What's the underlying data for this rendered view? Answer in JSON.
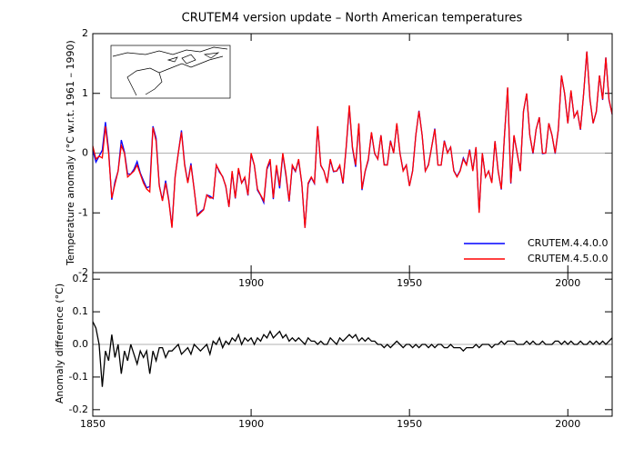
{
  "chart_data": [
    {
      "type": "line",
      "title": "CRUTEM4 version update – North American temperatures",
      "y_label": "Temperature anomaly (°C w.r.t. 1961 – 1990)",
      "x": [
        1850,
        1851,
        1852,
        1853,
        1854,
        1855,
        1856,
        1857,
        1858,
        1859,
        1860,
        1861,
        1862,
        1863,
        1864,
        1865,
        1866,
        1867,
        1868,
        1869,
        1870,
        1871,
        1872,
        1873,
        1874,
        1875,
        1876,
        1877,
        1878,
        1879,
        1880,
        1881,
        1882,
        1883,
        1884,
        1885,
        1886,
        1887,
        1888,
        1889,
        1890,
        1891,
        1892,
        1893,
        1894,
        1895,
        1896,
        1897,
        1898,
        1899,
        1900,
        1901,
        1902,
        1903,
        1904,
        1905,
        1906,
        1907,
        1908,
        1909,
        1910,
        1911,
        1912,
        1913,
        1914,
        1915,
        1916,
        1917,
        1918,
        1919,
        1920,
        1921,
        1922,
        1923,
        1924,
        1925,
        1926,
        1927,
        1928,
        1929,
        1930,
        1931,
        1932,
        1933,
        1934,
        1935,
        1936,
        1937,
        1938,
        1939,
        1940,
        1941,
        1942,
        1943,
        1944,
        1945,
        1946,
        1947,
        1948,
        1949,
        1950,
        1951,
        1952,
        1953,
        1954,
        1955,
        1956,
        1957,
        1958,
        1959,
        1960,
        1961,
        1962,
        1963,
        1964,
        1965,
        1966,
        1967,
        1968,
        1969,
        1970,
        1971,
        1972,
        1973,
        1974,
        1975,
        1976,
        1977,
        1978,
        1979,
        1980,
        1981,
        1982,
        1983,
        1984,
        1985,
        1986,
        1987,
        1988,
        1989,
        1990,
        1991,
        1992,
        1993,
        1994,
        1995,
        1996,
        1997,
        1998,
        1999,
        2000,
        2001,
        2002,
        2003,
        2004,
        2005,
        2006,
        2007,
        2008,
        2009,
        2010,
        2011,
        2012,
        2013,
        2014
      ],
      "series": [
        {
          "name": "CRUTEM.4.4.0.0",
          "color": "#0000ff",
          "values": [
            0.05,
            -0.15,
            -0.05,
            0.05,
            0.52,
            0.05,
            -0.78,
            -0.48,
            -0.3,
            0.22,
            0.02,
            -0.35,
            -0.35,
            -0.27,
            -0.14,
            -0.33,
            -0.46,
            -0.58,
            -0.56,
            0.45,
            0.25,
            -0.54,
            -0.79,
            -0.46,
            -0.78,
            -1.23,
            -0.39,
            0.0,
            0.38,
            -0.18,
            -0.49,
            -0.17,
            -0.6,
            -1.04,
            -0.98,
            -0.94,
            -0.7,
            -0.72,
            -0.76,
            -0.2,
            -0.32,
            -0.39,
            -0.56,
            -0.9,
            -0.32,
            -0.76,
            -0.28,
            -0.5,
            -0.42,
            -0.71,
            -0.02,
            -0.2,
            -0.62,
            -0.71,
            -0.83,
            -0.27,
            -0.14,
            -0.77,
            -0.23,
            -0.59,
            -0.02,
            -0.38,
            -0.81,
            -0.22,
            -0.31,
            -0.12,
            -0.51,
            -1.25,
            -0.52,
            -0.41,
            -0.51,
            0.45,
            -0.21,
            -0.3,
            -0.5,
            -0.12,
            -0.31,
            -0.3,
            -0.22,
            -0.51,
            0.08,
            0.77,
            0.08,
            -0.23,
            0.49,
            -0.62,
            -0.31,
            -0.12,
            0.34,
            -0.01,
            -0.1,
            0.3,
            -0.19,
            -0.2,
            0.21,
            0.0,
            0.49,
            0.0,
            -0.29,
            -0.2,
            -0.55,
            -0.29,
            0.3,
            0.71,
            0.3,
            -0.3,
            -0.19,
            0.1,
            0.41,
            -0.2,
            -0.2,
            0.21,
            0.01,
            0.1,
            -0.29,
            -0.39,
            -0.29,
            -0.08,
            -0.19,
            0.06,
            -0.29,
            0.1,
            -0.99,
            0.0,
            -0.4,
            -0.3,
            -0.49,
            0.2,
            -0.3,
            -0.61,
            0.3,
            1.09,
            -0.51,
            0.29,
            0.0,
            -0.3,
            0.7,
            0.99,
            0.3,
            -0.01,
            0.4,
            0.6,
            -0.01,
            0.0,
            0.5,
            0.3,
            -0.01,
            0.39,
            1.3,
            0.99,
            0.5,
            1.04,
            0.6,
            0.7,
            0.39,
            1.0,
            1.7,
            0.89,
            0.5,
            0.69,
            1.3,
            0.89,
            1.6,
            0.89,
            0.65
          ]
        },
        {
          "name": "CRUTEM.4.5.0.0",
          "color": "#ff0000",
          "values": [
            0.12,
            -0.1,
            -0.05,
            -0.08,
            0.45,
            0.0,
            -0.75,
            -0.52,
            -0.3,
            0.13,
            0.0,
            -0.4,
            -0.35,
            -0.3,
            -0.2,
            -0.35,
            -0.5,
            -0.6,
            -0.65,
            0.43,
            0.2,
            -0.55,
            -0.8,
            -0.5,
            -0.8,
            -1.25,
            -0.4,
            0.0,
            0.35,
            -0.2,
            -0.5,
            -0.2,
            -0.6,
            -1.05,
            -1.0,
            -0.95,
            -0.7,
            -0.75,
            -0.75,
            -0.2,
            -0.3,
            -0.4,
            -0.55,
            -0.9,
            -0.3,
            -0.75,
            -0.25,
            -0.5,
            -0.4,
            -0.7,
            0.0,
            -0.2,
            -0.6,
            -0.7,
            -0.8,
            -0.25,
            -0.1,
            -0.75,
            -0.2,
            -0.55,
            0.0,
            -0.35,
            -0.8,
            -0.2,
            -0.3,
            -0.1,
            -0.5,
            -1.25,
            -0.5,
            -0.4,
            -0.5,
            0.45,
            -0.2,
            -0.3,
            -0.5,
            -0.1,
            -0.3,
            -0.3,
            -0.2,
            -0.5,
            0.1,
            0.8,
            0.1,
            -0.2,
            0.5,
            -0.6,
            -0.3,
            -0.1,
            0.35,
            0.0,
            -0.1,
            0.3,
            -0.2,
            -0.2,
            0.2,
            0.0,
            0.5,
            0.0,
            -0.3,
            -0.2,
            -0.55,
            -0.3,
            0.3,
            0.7,
            0.3,
            -0.3,
            -0.2,
            0.1,
            0.4,
            -0.2,
            -0.2,
            0.2,
            0.0,
            0.1,
            -0.3,
            -0.4,
            -0.3,
            -0.1,
            -0.2,
            0.05,
            -0.3,
            0.1,
            -1.0,
            0.0,
            -0.4,
            -0.3,
            -0.5,
            0.2,
            -0.3,
            -0.6,
            0.3,
            1.1,
            -0.5,
            0.3,
            0.0,
            -0.3,
            0.7,
            1.0,
            0.3,
            0.0,
            0.4,
            0.6,
            0.0,
            0.0,
            0.5,
            0.3,
            0.0,
            0.4,
            1.3,
            1.0,
            0.5,
            1.05,
            0.6,
            0.7,
            0.4,
            1.0,
            1.7,
            0.9,
            0.5,
            0.7,
            1.3,
            0.9,
            1.6,
            0.9,
            0.65
          ]
        }
      ],
      "xlim": [
        1850,
        2014
      ],
      "xticks": [
        1900,
        1950,
        2000
      ],
      "ylim": [
        -2,
        2
      ],
      "yticks": [
        -2,
        -1,
        0,
        1,
        2
      ],
      "legend": "lower right"
    },
    {
      "type": "line",
      "y_label": "Anomaly difference (°C)",
      "x": [
        1850,
        1851,
        1852,
        1853,
        1854,
        1855,
        1856,
        1857,
        1858,
        1859,
        1860,
        1861,
        1862,
        1863,
        1864,
        1865,
        1866,
        1867,
        1868,
        1869,
        1870,
        1871,
        1872,
        1873,
        1874,
        1875,
        1876,
        1877,
        1878,
        1879,
        1880,
        1881,
        1882,
        1883,
        1884,
        1885,
        1886,
        1887,
        1888,
        1889,
        1890,
        1891,
        1892,
        1893,
        1894,
        1895,
        1896,
        1897,
        1898,
        1899,
        1900,
        1901,
        1902,
        1903,
        1904,
        1905,
        1906,
        1907,
        1908,
        1909,
        1910,
        1911,
        1912,
        1913,
        1914,
        1915,
        1916,
        1917,
        1918,
        1919,
        1920,
        1921,
        1922,
        1923,
        1924,
        1925,
        1926,
        1927,
        1928,
        1929,
        1930,
        1931,
        1932,
        1933,
        1934,
        1935,
        1936,
        1937,
        1938,
        1939,
        1940,
        1941,
        1942,
        1943,
        1944,
        1945,
        1946,
        1947,
        1948,
        1949,
        1950,
        1951,
        1952,
        1953,
        1954,
        1955,
        1956,
        1957,
        1958,
        1959,
        1960,
        1961,
        1962,
        1963,
        1964,
        1965,
        1966,
        1967,
        1968,
        1969,
        1970,
        1971,
        1972,
        1973,
        1974,
        1975,
        1976,
        1977,
        1978,
        1979,
        1980,
        1981,
        1982,
        1983,
        1984,
        1985,
        1986,
        1987,
        1988,
        1989,
        1990,
        1991,
        1992,
        1993,
        1994,
        1995,
        1996,
        1997,
        1998,
        1999,
        2000,
        2001,
        2002,
        2003,
        2004,
        2005,
        2006,
        2007,
        2008,
        2009,
        2010,
        2011,
        2012,
        2013,
        2014
      ],
      "series": [
        {
          "color": "#000000",
          "values": [
            0.07,
            0.05,
            0.0,
            -0.13,
            -0.02,
            -0.05,
            0.03,
            -0.04,
            0.0,
            -0.09,
            -0.02,
            -0.05,
            0.0,
            -0.03,
            -0.06,
            -0.02,
            -0.04,
            -0.02,
            -0.09,
            -0.02,
            -0.05,
            -0.01,
            -0.01,
            -0.04,
            -0.02,
            -0.02,
            -0.01,
            0.0,
            -0.03,
            -0.02,
            -0.01,
            -0.03,
            0.0,
            -0.01,
            -0.02,
            -0.01,
            0.0,
            -0.03,
            0.01,
            0.0,
            0.02,
            -0.01,
            0.01,
            0.0,
            0.02,
            0.01,
            0.03,
            0.0,
            0.02,
            0.01,
            0.02,
            0.0,
            0.02,
            0.01,
            0.03,
            0.02,
            0.04,
            0.02,
            0.03,
            0.04,
            0.02,
            0.03,
            0.01,
            0.02,
            0.01,
            0.02,
            0.01,
            0.0,
            0.02,
            0.01,
            0.01,
            0.0,
            0.01,
            0.0,
            0.0,
            0.02,
            0.01,
            0.0,
            0.02,
            0.01,
            0.02,
            0.03,
            0.02,
            0.03,
            0.01,
            0.02,
            0.01,
            0.02,
            0.01,
            0.01,
            0.0,
            0.0,
            -0.01,
            0.0,
            -0.01,
            0.0,
            0.01,
            0.0,
            -0.01,
            0.0,
            0.0,
            -0.01,
            0.0,
            -0.01,
            0.0,
            0.0,
            -0.01,
            0.0,
            -0.01,
            0.0,
            0.0,
            -0.01,
            -0.01,
            0.0,
            -0.01,
            -0.01,
            -0.01,
            -0.02,
            -0.01,
            -0.01,
            -0.01,
            0.0,
            -0.01,
            0.0,
            0.0,
            0.0,
            -0.01,
            0.0,
            0.0,
            0.01,
            0.0,
            0.01,
            0.01,
            0.01,
            0.0,
            0.0,
            0.0,
            0.01,
            0.0,
            0.01,
            0.0,
            0.0,
            0.01,
            0.0,
            0.0,
            0.0,
            0.01,
            0.01,
            0.0,
            0.01,
            0.0,
            0.01,
            0.0,
            0.0,
            0.01,
            0.0,
            0.0,
            0.01,
            0.0,
            0.01,
            0.0,
            0.01,
            0.0,
            0.01,
            0.02
          ]
        }
      ],
      "xlim": [
        1850,
        2014
      ],
      "xticks": [
        1850,
        1900,
        1950,
        2000
      ],
      "ylim": [
        -0.22,
        0.22
      ],
      "yticks": [
        -0.2,
        -0.1,
        {
          "value": 0,
          "label": "0.0"
        },
        0.1,
        0.2
      ]
    }
  ]
}
